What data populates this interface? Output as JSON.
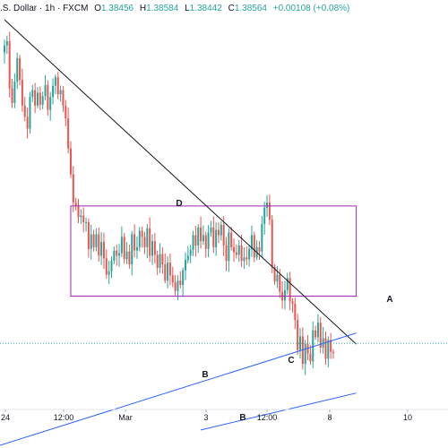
{
  "header": {
    "symbol": ".S. Dollar",
    "separator1": "·",
    "interval": "1h",
    "separator2": "·",
    "source": "FXCM",
    "open_label": "O",
    "open_value": "1.38456",
    "high_label": "H",
    "high_value": "1.38584",
    "low_label": "L",
    "low_value": "1.38442",
    "close_label": "C",
    "close_value": "1.38564",
    "change": "+0.00108 (+0.08%)"
  },
  "colors": {
    "up": "#26a69a",
    "down": "#ef5350",
    "trendline": "#131722",
    "channel_line": "#2962ff",
    "rectangle": "#9c27b0",
    "price_line": "#26a69a"
  },
  "chart_data": {
    "type": "candlestick",
    "title": "",
    "xlabel": "",
    "ylabel": "",
    "x_ticks": [
      "24",
      "12:00",
      "Mar",
      "3",
      "12:00",
      "8",
      "10"
    ],
    "annotations": [
      "A",
      "B",
      "B",
      "C",
      "D"
    ],
    "close_series": [
      1.4055,
      1.406,
      1.4005,
      1.3988,
      1.4013,
      1.404,
      1.4015,
      1.3985,
      1.3972,
      1.3958,
      1.3995,
      1.4003,
      1.3985,
      1.4,
      1.3986,
      1.3996,
      1.4009,
      1.398,
      1.3995,
      1.4008,
      1.4018,
      1.3998,
      1.4003,
      1.3985,
      1.397,
      1.3935,
      1.3905,
      1.3872,
      1.3868,
      1.3855,
      1.3857,
      1.3849,
      1.3849,
      1.3818,
      1.3835,
      1.382,
      1.3835,
      1.381,
      1.3826,
      1.3807,
      1.3788,
      1.3792,
      1.3804,
      1.3816,
      1.381,
      1.3813,
      1.3832,
      1.3806,
      1.3815,
      1.38,
      1.3835,
      1.3816,
      1.382,
      1.3839,
      1.3832,
      1.382,
      1.3842,
      1.381,
      1.3827,
      1.3811,
      1.3796,
      1.3812,
      1.38,
      1.3781,
      1.3802,
      1.3787,
      1.3779,
      1.3769,
      1.3781,
      1.3776,
      1.3793,
      1.3805,
      1.381,
      1.3817,
      1.3834,
      1.3822,
      1.3843,
      1.3827,
      1.3834,
      1.3818,
      1.3837,
      1.3843,
      1.382,
      1.384,
      1.3834,
      1.3846,
      1.3822,
      1.3804,
      1.3837,
      1.382,
      1.3814,
      1.3811,
      1.3822,
      1.3804,
      1.3808,
      1.3806,
      1.3818,
      1.3834,
      1.3808,
      1.382,
      1.3815,
      1.3847,
      1.3866,
      1.3872,
      1.3852,
      1.3797,
      1.378,
      1.3788,
      1.3768,
      1.3758,
      1.377,
      1.3784,
      1.3757,
      1.3754,
      1.3735,
      1.37,
      1.3716,
      1.3684,
      1.3707,
      1.3696,
      1.3687,
      1.3723,
      1.3715,
      1.3732,
      1.3703,
      1.3714,
      1.369,
      1.3712,
      1.3698,
      1.3697
    ],
    "candle_count": 130,
    "price_line": 1.3708,
    "trend_lines": [
      {
        "label": "A",
        "from": [
          0,
          1.4085
        ],
        "to": [
          138,
          1.3707
        ]
      },
      {
        "label": "B",
        "from": [
          -4,
          1.3587
        ],
        "to": [
          138,
          1.372
        ]
      },
      {
        "label": "B",
        "from": [
          77,
          1.3607
        ],
        "to": [
          138,
          1.365
        ]
      }
    ],
    "rectangle": {
      "label": "D",
      "x": [
        26,
        138
      ],
      "y": [
        1.3763,
        1.3868
      ]
    },
    "ylim": [
      1.3586,
      1.4108
    ],
    "grid": false,
    "legend": "none"
  }
}
